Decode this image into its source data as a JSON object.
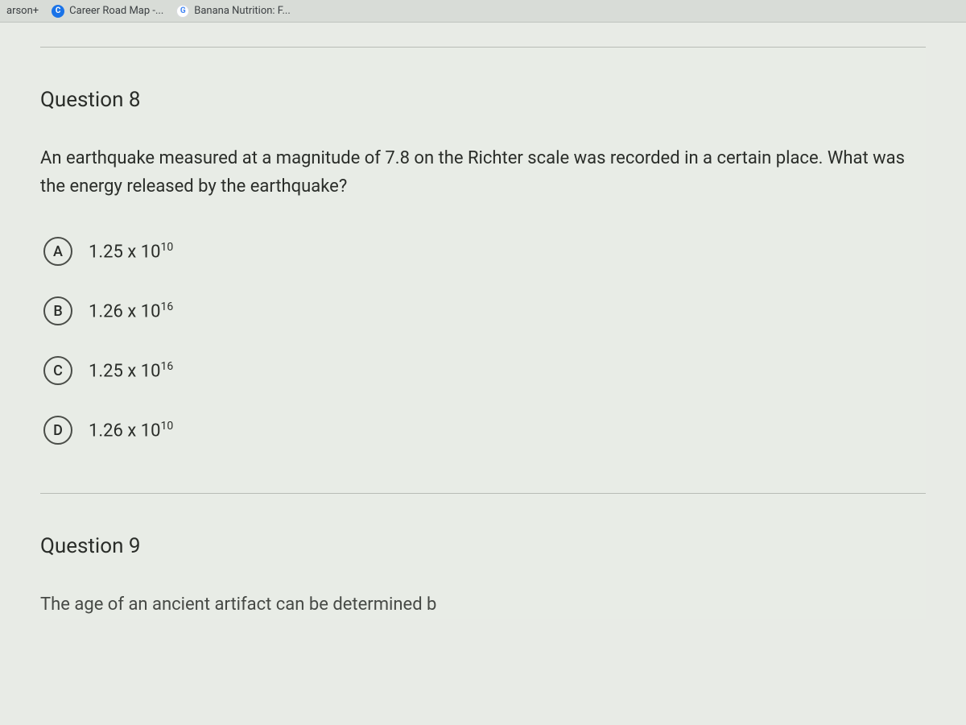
{
  "bookmarks": {
    "items": [
      {
        "label": "arson+",
        "favicon": null
      },
      {
        "label": "Career Road Map -...",
        "favicon": "C",
        "favicon_bg": "#1a73e8"
      },
      {
        "label": "Banana Nutrition: F...",
        "favicon": "G",
        "favicon_bg": "#ffffff"
      }
    ]
  },
  "quiz": {
    "question8": {
      "title": "Question 8",
      "text": "An earthquake measured at a magnitude of 7.8 on the Richter scale was recorded in a certain place.  What was the energy released by the earthquake?",
      "options": [
        {
          "letter": "A",
          "base": "1.25 x 10",
          "exp": "10"
        },
        {
          "letter": "B",
          "base": "1.26 x 10",
          "exp": "16"
        },
        {
          "letter": "C",
          "base": "1.25 x 10",
          "exp": "16"
        },
        {
          "letter": "D",
          "base": "1.26 x 10",
          "exp": "10"
        }
      ]
    },
    "question9": {
      "title": "Question 9",
      "text_partial": "The age of an ancient artifact can be determined b"
    }
  },
  "colors": {
    "page_bg": "#d8dcd7",
    "content_bg": "#e8ebe6",
    "text": "#2a2d29",
    "border": "#b8bcb6",
    "option_border": "#4a4d48"
  }
}
